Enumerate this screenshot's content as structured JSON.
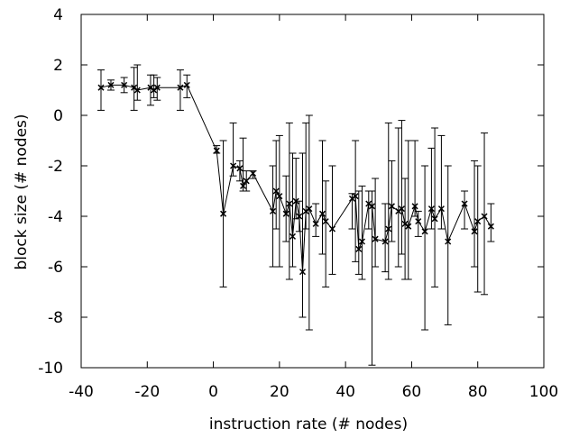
{
  "chart_data": {
    "type": "line",
    "title": "",
    "xlabel": "instruction rate (# nodes)",
    "ylabel": "block size (# nodes)",
    "xlim": [
      -40,
      100
    ],
    "ylim": [
      -10,
      4
    ],
    "xticks": [
      -40,
      -20,
      0,
      20,
      40,
      60,
      80,
      100
    ],
    "yticks": [
      -10,
      -8,
      -6,
      -4,
      -2,
      0,
      2,
      4
    ],
    "grid": false,
    "legend": "none",
    "series": [
      {
        "marker": "cross",
        "color": "#000000",
        "points": [
          {
            "x": -34,
            "y": 1.1,
            "lo": 0.2,
            "hi": 1.8
          },
          {
            "x": -31,
            "y": 1.2,
            "lo": 1.0,
            "hi": 1.4
          },
          {
            "x": -27,
            "y": 1.2,
            "lo": 0.9,
            "hi": 1.5
          },
          {
            "x": -24,
            "y": 1.1,
            "lo": 0.2,
            "hi": 1.9
          },
          {
            "x": -23,
            "y": 1.0,
            "lo": 0.6,
            "hi": 2.0
          },
          {
            "x": -19,
            "y": 1.1,
            "lo": 0.4,
            "hi": 1.6
          },
          {
            "x": -18,
            "y": 1.0,
            "lo": 0.7,
            "hi": 1.6
          },
          {
            "x": -17,
            "y": 1.1,
            "lo": 0.6,
            "hi": 1.5
          },
          {
            "x": -10,
            "y": 1.1,
            "lo": 0.2,
            "hi": 1.8
          },
          {
            "x": -8,
            "y": 1.2,
            "lo": 0.7,
            "hi": 1.6
          },
          {
            "x": 1,
            "y": -1.4,
            "lo": -1.5,
            "hi": -1.2
          },
          {
            "x": 3,
            "y": -3.9,
            "lo": -6.8,
            "hi": -1.0
          },
          {
            "x": 6,
            "y": -2.0,
            "lo": -2.4,
            "hi": -0.3
          },
          {
            "x": 8,
            "y": -2.1,
            "lo": -2.6,
            "hi": -1.8
          },
          {
            "x": 9,
            "y": -2.8,
            "lo": -3.0,
            "hi": -0.9
          },
          {
            "x": 10,
            "y": -2.6,
            "lo": -3.0,
            "hi": -2.2
          },
          {
            "x": 12,
            "y": -2.3,
            "lo": -2.5,
            "hi": -2.2
          },
          {
            "x": 18,
            "y": -3.8,
            "lo": -6.0,
            "hi": -2.0
          },
          {
            "x": 19,
            "y": -3.0,
            "lo": -4.5,
            "hi": -1.0
          },
          {
            "x": 20,
            "y": -3.2,
            "lo": -6.0,
            "hi": -0.8
          },
          {
            "x": 22,
            "y": -3.9,
            "lo": -5.0,
            "hi": -2.4
          },
          {
            "x": 23,
            "y": -3.5,
            "lo": -6.5,
            "hi": -0.3
          },
          {
            "x": 24,
            "y": -4.8,
            "lo": -6.0,
            "hi": -1.5
          },
          {
            "x": 25,
            "y": -3.4,
            "lo": -4.1,
            "hi": -1.7
          },
          {
            "x": 26,
            "y": -4.0,
            "lo": -4.6,
            "hi": -3.4
          },
          {
            "x": 27,
            "y": -6.2,
            "lo": -8.0,
            "hi": -1.5
          },
          {
            "x": 28,
            "y": -3.8,
            "lo": -4.5,
            "hi": -0.3
          },
          {
            "x": 29,
            "y": -3.7,
            "lo": -8.5,
            "hi": 0.0
          },
          {
            "x": 31,
            "y": -4.3,
            "lo": -4.8,
            "hi": -3.5
          },
          {
            "x": 33,
            "y": -3.9,
            "lo": -5.5,
            "hi": -1.0
          },
          {
            "x": 34,
            "y": -4.2,
            "lo": -6.8,
            "hi": -2.6
          },
          {
            "x": 36,
            "y": -4.5,
            "lo": -6.3,
            "hi": -2.0
          },
          {
            "x": 42,
            "y": -3.3,
            "lo": -4.5,
            "hi": -3.1
          },
          {
            "x": 43,
            "y": -3.2,
            "lo": -5.8,
            "hi": -1.0
          },
          {
            "x": 44,
            "y": -5.3,
            "lo": -6.3,
            "hi": -3.0
          },
          {
            "x": 45,
            "y": -5.0,
            "lo": -6.5,
            "hi": -2.8
          },
          {
            "x": 47,
            "y": -3.5,
            "lo": -4.5,
            "hi": -3.0
          },
          {
            "x": 48,
            "y": -3.6,
            "lo": -9.9,
            "hi": -3.0
          },
          {
            "x": 49,
            "y": -4.9,
            "lo": -6.0,
            "hi": -2.5
          },
          {
            "x": 52,
            "y": -5.0,
            "lo": -6.2,
            "hi": -3.5
          },
          {
            "x": 53,
            "y": -4.5,
            "lo": -6.5,
            "hi": -0.3
          },
          {
            "x": 54,
            "y": -3.6,
            "lo": -5.0,
            "hi": -1.8
          },
          {
            "x": 56,
            "y": -3.8,
            "lo": -6.0,
            "hi": -0.5
          },
          {
            "x": 57,
            "y": -3.7,
            "lo": -5.5,
            "hi": -0.2
          },
          {
            "x": 58,
            "y": -4.3,
            "lo": -6.5,
            "hi": -2.5
          },
          {
            "x": 59,
            "y": -4.4,
            "lo": -6.5,
            "hi": -1.0
          },
          {
            "x": 61,
            "y": -3.6,
            "lo": -4.0,
            "hi": -1.0
          },
          {
            "x": 62,
            "y": -4.2,
            "lo": -4.8,
            "hi": -3.8
          },
          {
            "x": 64,
            "y": -4.6,
            "lo": -8.5,
            "hi": -2.0
          },
          {
            "x": 66,
            "y": -3.7,
            "lo": -4.5,
            "hi": -1.3
          },
          {
            "x": 67,
            "y": -4.1,
            "lo": -6.8,
            "hi": -0.5
          },
          {
            "x": 69,
            "y": -3.7,
            "lo": -4.5,
            "hi": -0.8
          },
          {
            "x": 71,
            "y": -5.0,
            "lo": -8.3,
            "hi": -2.0
          },
          {
            "x": 76,
            "y": -3.5,
            "lo": -4.5,
            "hi": -3.0
          },
          {
            "x": 79,
            "y": -4.6,
            "lo": -6.0,
            "hi": -1.8
          },
          {
            "x": 80,
            "y": -4.2,
            "lo": -7.0,
            "hi": -2.0
          },
          {
            "x": 82,
            "y": -4.0,
            "lo": -7.1,
            "hi": -0.7
          },
          {
            "x": 84,
            "y": -4.4,
            "lo": -5.0,
            "hi": -3.5
          }
        ]
      }
    ]
  }
}
